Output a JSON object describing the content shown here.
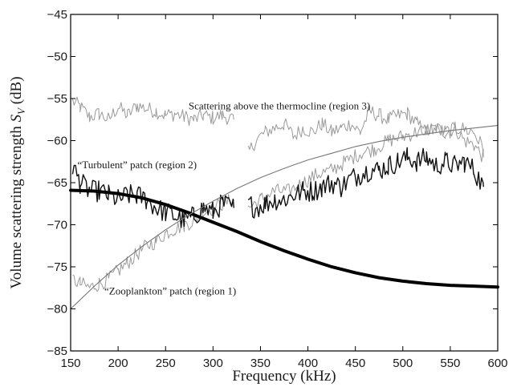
{
  "chart_data": {
    "type": "line",
    "title": "",
    "xlabel": "Frequency (kHz)",
    "ylabel_prefix": "Volume scattering strength ",
    "ylabel_symbol": "S",
    "ylabel_subscript": "V",
    "ylabel_suffix": " (dB)",
    "xlim": [
      150,
      600
    ],
    "ylim": [
      -85,
      -45
    ],
    "xticks": [
      150,
      200,
      250,
      300,
      350,
      400,
      450,
      500,
      550,
      600
    ],
    "yticks": [
      -85,
      -80,
      -75,
      -70,
      -65,
      -60,
      -55,
      -50,
      -45
    ],
    "grid": false,
    "legend": "none",
    "annotations": [
      {
        "text": "Scattering above the thermocline (region 3)",
        "x": 370,
        "y": -56.3
      },
      {
        "text": "“Turbulent” patch (region 2)",
        "x": 220,
        "y": -63.3
      },
      {
        "text": "“Zooplankton” patch (region 1)",
        "x": 255,
        "y": -78.3
      }
    ],
    "series": [
      {
        "style": "noisy-light",
        "segments": [
          {
            "x": [
              152,
              160,
              170,
              180,
              190,
              200,
              210,
              220,
              230,
              240,
              250,
              260,
              270,
              280,
              290,
              300,
              310,
              322
            ],
            "y": [
              -55.3,
              -56.0,
              -57.2,
              -56.8,
              -57.5,
              -56.0,
              -57.0,
              -55.8,
              -56.2,
              -56.5,
              -57.0,
              -56.8,
              -57.2,
              -57.5,
              -57.0,
              -57.3,
              -57.0,
              -57.5
            ]
          },
          {
            "x": [
              337,
              345,
              355,
              365,
              375,
              385,
              395,
              405,
              415,
              425,
              435,
              445,
              455,
              465,
              475,
              485,
              495,
              505,
              515,
              525,
              535,
              545,
              555,
              565,
              575,
              585
            ],
            "y": [
              -61.5,
              -60.0,
              -59.0,
              -58.5,
              -58.0,
              -59.5,
              -58.5,
              -59.0,
              -58.0,
              -59.0,
              -58.5,
              -58.0,
              -59.0,
              -56.5,
              -57.0,
              -57.5,
              -57.0,
              -56.8,
              -58.0,
              -59.0,
              -58.5,
              -59.0,
              -58.5,
              -60.0,
              -60.5,
              -62.0
            ]
          }
        ]
      },
      {
        "style": "noisy-light",
        "segments": [
          {
            "x": [
              152,
              160,
              170,
              180,
              190,
              200,
              210,
              220,
              230,
              240,
              250,
              260,
              270,
              280,
              290,
              300,
              310,
              322
            ],
            "y": [
              -76.5,
              -77.0,
              -77.5,
              -77.0,
              -76.5,
              -75.5,
              -74.5,
              -73.5,
              -72.5,
              -72.0,
              -71.0,
              -70.5,
              -70.0,
              -69.5,
              -68.5,
              -68.0,
              -67.5,
              -67.0
            ]
          },
          {
            "x": [
              337,
              350,
              365,
              380,
              395,
              410,
              425,
              440,
              455,
              470,
              485,
              500,
              515,
              530,
              545,
              560,
              575,
              585
            ],
            "y": [
              -68.0,
              -67.0,
              -66.0,
              -66.0,
              -65.0,
              -64.0,
              -63.5,
              -62.5,
              -61.5,
              -61.0,
              -60.0,
              -59.5,
              -59.0,
              -58.5,
              -59.0,
              -58.5,
              -59.0,
              -61.0
            ]
          }
        ]
      },
      {
        "style": "noisy-dark",
        "segments": [
          {
            "x": [
              152,
              160,
              170,
              180,
              190,
              200,
              210,
              220,
              230,
              240,
              250,
              260,
              270,
              280,
              290,
              300,
              310,
              322
            ],
            "y": [
              -63.0,
              -65.0,
              -66.0,
              -66.0,
              -66.5,
              -67.0,
              -66.5,
              -66.5,
              -67.0,
              -68.0,
              -68.5,
              -69.0,
              -69.5,
              -69.0,
              -68.0,
              -68.5,
              -67.5,
              -68.0
            ]
          },
          {
            "x": [
              337,
              345,
              355,
              365,
              375,
              385,
              395,
              405,
              415,
              425,
              435,
              445,
              455,
              465,
              475,
              485,
              495,
              505,
              515,
              525,
              535,
              545,
              555,
              565,
              575,
              585
            ],
            "y": [
              -67.5,
              -68.0,
              -67.5,
              -67.0,
              -67.0,
              -66.5,
              -66.0,
              -66.0,
              -65.5,
              -65.0,
              -65.5,
              -64.5,
              -64.0,
              -63.5,
              -63.5,
              -63.0,
              -62.5,
              -62.0,
              -62.5,
              -62.0,
              -63.0,
              -62.5,
              -63.0,
              -62.5,
              -63.5,
              -65.5
            ]
          }
        ]
      },
      {
        "style": "model-thick",
        "x": [
          150,
          175,
          200,
          225,
          250,
          275,
          300,
          325,
          350,
          375,
          400,
          425,
          450,
          475,
          500,
          525,
          550,
          575,
          600
        ],
        "y": [
          -65.9,
          -66.0,
          -66.3,
          -66.8,
          -67.6,
          -68.6,
          -69.7,
          -70.8,
          -72.0,
          -73.1,
          -74.1,
          -75.0,
          -75.7,
          -76.3,
          -76.7,
          -77.0,
          -77.2,
          -77.3,
          -77.4
        ]
      },
      {
        "style": "model-thin",
        "x": [
          150,
          175,
          200,
          225,
          250,
          275,
          300,
          325,
          350,
          375,
          400,
          425,
          450,
          475,
          500,
          525,
          550,
          575,
          600
        ],
        "y": [
          -80.0,
          -77.3,
          -74.8,
          -72.6,
          -70.6,
          -68.8,
          -67.2,
          -65.7,
          -64.4,
          -63.3,
          -62.3,
          -61.5,
          -60.7,
          -60.1,
          -59.6,
          -59.2,
          -58.8,
          -58.5,
          -58.2
        ]
      }
    ],
    "colors": {
      "noisy-light": "#9a9a9a",
      "noisy-dark": "#111111",
      "model-thick": "#000000",
      "model-thin": "#777777"
    }
  }
}
